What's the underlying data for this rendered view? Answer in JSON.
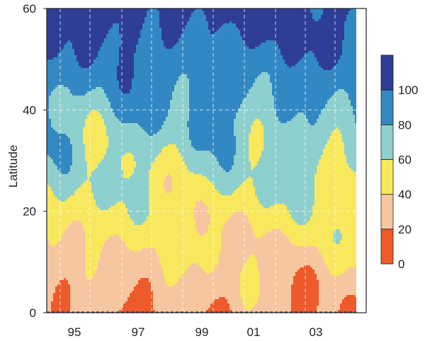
{
  "chart_data": {
    "type": "heatmap",
    "ylabel": "Latitude",
    "xlabel": "",
    "x_ticks": [
      "95",
      "97",
      "99",
      "01",
      "03"
    ],
    "y_ticks": [
      "0",
      "20",
      "40",
      "60"
    ],
    "ylim": [
      0,
      60
    ],
    "xlim_years": [
      1993.7,
      2004.4
    ],
    "grid": true,
    "colorbar": {
      "placement": "right",
      "ticks": [
        "0",
        "20",
        "40",
        "60",
        "80",
        "100"
      ],
      "bins": [
        {
          "from": 0,
          "to": 20,
          "color": "#ee5a2a"
        },
        {
          "from": 20,
          "to": 40,
          "color": "#f6c6a0"
        },
        {
          "from": 40,
          "to": 60,
          "color": "#f8e85e"
        },
        {
          "from": 60,
          "to": 80,
          "color": "#8ed0cd"
        },
        {
          "from": 80,
          "to": 100,
          "color": "#3288c3"
        },
        {
          "from": 100,
          "to": 120,
          "color": "#2e3d96"
        }
      ]
    }
  }
}
